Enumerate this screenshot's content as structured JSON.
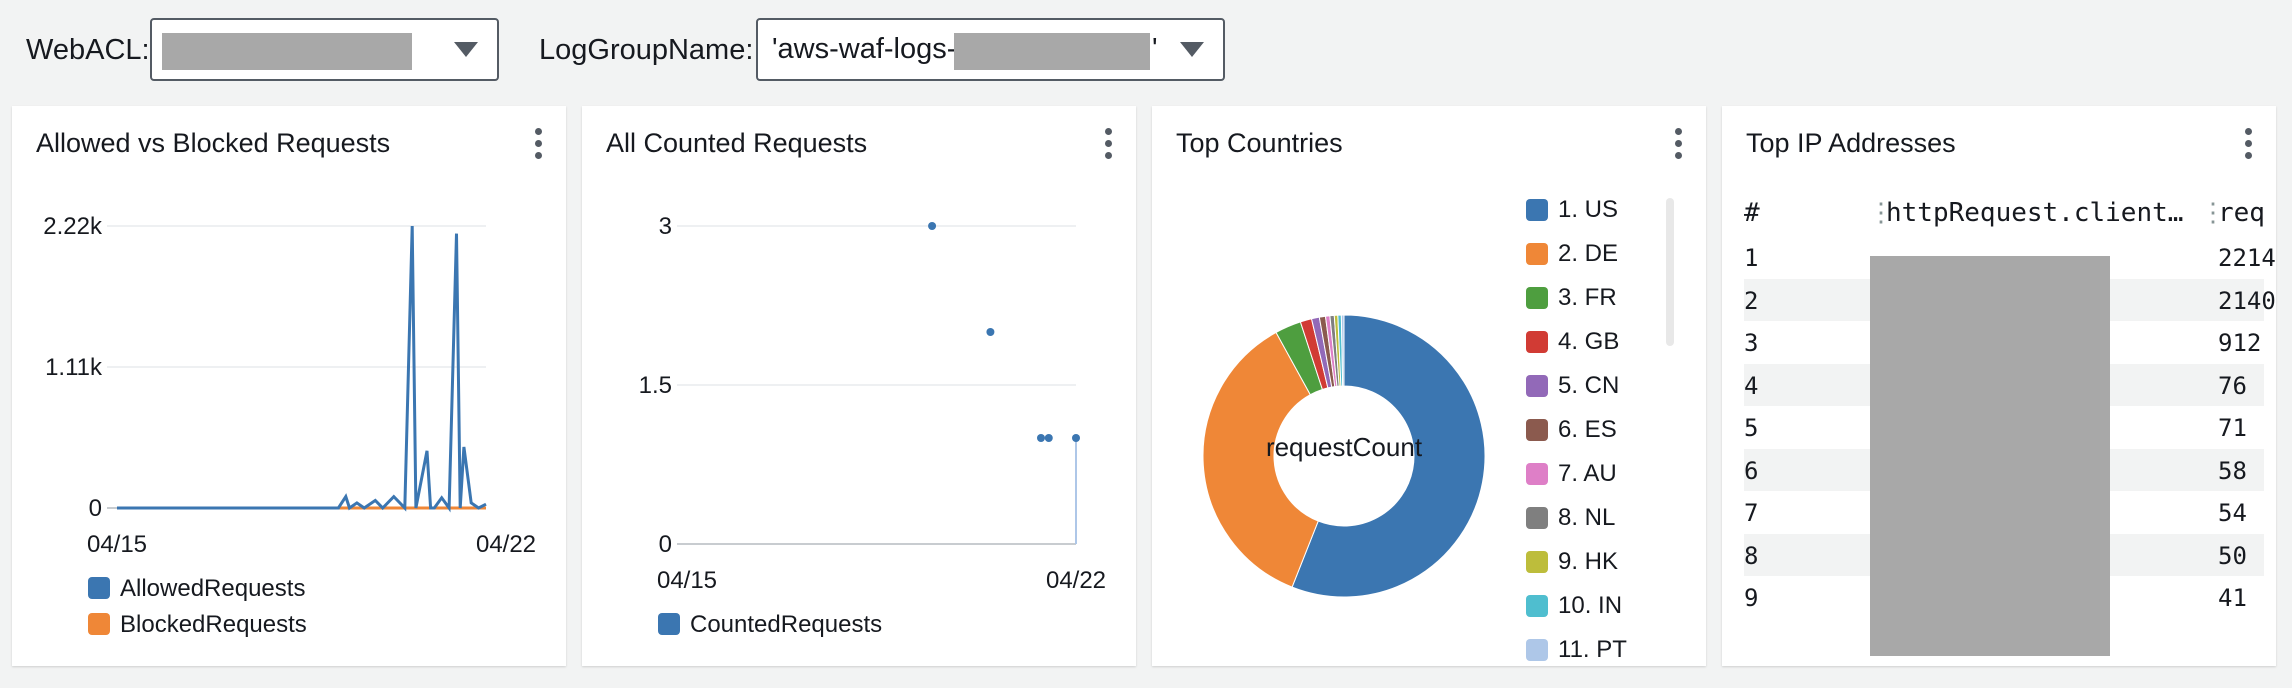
{
  "filters": {
    "webacl_label": "WebACL:",
    "loggroup_label": "LogGroupName:",
    "loggroup_prefix": "'aws-waf-logs-",
    "loggroup_suffix": "'"
  },
  "panels": {
    "allowed_blocked": {
      "title": "Allowed vs Blocked Requests",
      "legend": [
        "AllowedRequests",
        "BlockedRequests"
      ],
      "y_ticks": [
        "2.22k",
        "1.11k",
        "0"
      ],
      "x_ticks": [
        "04/15",
        "04/22"
      ]
    },
    "counted": {
      "title": "All Counted Requests",
      "legend": [
        "CountedRequests"
      ],
      "y_ticks": [
        "3",
        "1.5",
        "0"
      ],
      "x_ticks": [
        "04/15",
        "04/22"
      ]
    },
    "countries": {
      "title": "Top Countries",
      "center_label": "requestCount",
      "legend": [
        "1. US",
        "2. DE",
        "3. FR",
        "4. GB",
        "5. CN",
        "6. ES",
        "7. AU",
        "8. NL",
        "9. HK",
        "10. IN",
        "11. PT"
      ]
    },
    "ips": {
      "title": "Top IP Addresses",
      "columns": [
        "#",
        "httpRequest.client…",
        "req"
      ],
      "rows": [
        {
          "rank": "1",
          "count": "2214"
        },
        {
          "rank": "2",
          "count": "2140"
        },
        {
          "rank": "3",
          "count": "912"
        },
        {
          "rank": "4",
          "count": "76"
        },
        {
          "rank": "5",
          "count": "71"
        },
        {
          "rank": "6",
          "count": "58"
        },
        {
          "rank": "7",
          "count": "54"
        },
        {
          "rank": "8",
          "count": "50"
        },
        {
          "rank": "9",
          "count": "41"
        }
      ]
    }
  },
  "colors": {
    "blue": "#3b76b1",
    "orange": "#ef8737",
    "green": "#4e9e3f",
    "red": "#d13b34",
    "purple": "#9269b8",
    "brown": "#8b5a4e",
    "pink": "#de7fc7",
    "gray": "#7f7f7f",
    "olive": "#bdbd3b",
    "cyan": "#4fbecf",
    "lightblue": "#aec7e8"
  },
  "chart_data": [
    {
      "type": "line",
      "title": "Allowed vs Blocked Requests",
      "x_ticks": [
        "04/15",
        "04/22"
      ],
      "ylim": [
        0,
        2220
      ],
      "series": [
        {
          "name": "AllowedRequests",
          "color": "#3b76b1",
          "x": [
            0,
            0.6,
            0.62,
            0.63,
            0.65,
            0.67,
            0.7,
            0.72,
            0.75,
            0.78,
            0.8,
            0.81,
            0.84,
            0.85,
            0.86,
            0.88,
            0.9,
            0.92,
            0.93,
            0.94,
            0.96,
            0.98,
            1.0
          ],
          "values": [
            0,
            0,
            90,
            0,
            40,
            0,
            60,
            0,
            90,
            0,
            2220,
            0,
            450,
            0,
            0,
            80,
            0,
            2160,
            0,
            480,
            40,
            0,
            30
          ]
        },
        {
          "name": "BlockedRequests",
          "color": "#ef8737",
          "x": [
            0,
            1.0
          ],
          "values": [
            0,
            0
          ]
        }
      ]
    },
    {
      "type": "scatter",
      "title": "All Counted Requests",
      "x_ticks": [
        "04/15",
        "04/22"
      ],
      "ylim": [
        0,
        3
      ],
      "series": [
        {
          "name": "CountedRequests",
          "color": "#3b76b1",
          "x": [
            0.63,
            0.78,
            0.91,
            0.93,
            1.0
          ],
          "values": [
            3,
            2,
            1,
            1,
            1
          ]
        }
      ]
    },
    {
      "type": "pie",
      "title": "Top Countries",
      "center_label": "requestCount",
      "categories": [
        "1. US",
        "2. DE",
        "3. FR",
        "4. GB",
        "5. CN",
        "6. ES",
        "7. AU",
        "8. NL",
        "9. HK",
        "10. IN",
        "11. PT"
      ],
      "values": [
        56.0,
        36.0,
        3.0,
        1.3,
        0.9,
        0.7,
        0.5,
        0.5,
        0.4,
        0.4,
        0.3
      ],
      "colors": [
        "#3b76b1",
        "#ef8737",
        "#4e9e3f",
        "#d13b34",
        "#9269b8",
        "#8b5a4e",
        "#de7fc7",
        "#7f7f7f",
        "#bdbd3b",
        "#4fbecf",
        "#aec7e8"
      ]
    }
  ]
}
